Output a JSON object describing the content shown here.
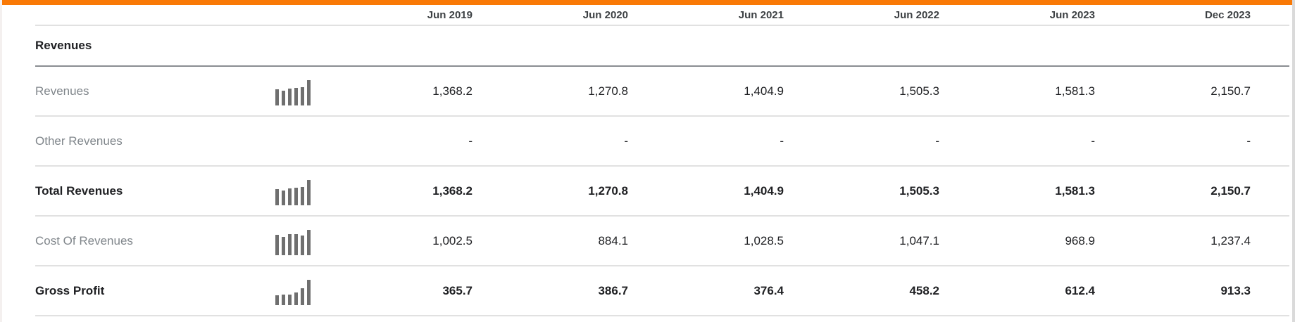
{
  "colors": {
    "top_accent": "#f97906",
    "sparkline": "#6f6f6f",
    "separator_light": "#e1e1e1",
    "separator_dark": "#8a8d91",
    "left_strip": "#f4f0ef",
    "right_strip": "#dadada",
    "header_text": "#3c4043",
    "muted_label": "#80868b",
    "strong_text": "#202124"
  },
  "table": {
    "columns": [
      "Jun 2019",
      "Jun 2020",
      "Jun 2021",
      "Jun 2022",
      "Jun 2023",
      "Dec 2023"
    ],
    "section_label": "Revenues",
    "rows": [
      {
        "label": "Revenues",
        "bold": false,
        "sparkline": [
          1368.2,
          1270.8,
          1404.9,
          1505.3,
          1581.3,
          2150.7
        ],
        "values": [
          "1,368.2",
          "1,270.8",
          "1,404.9",
          "1,505.3",
          "1,581.3",
          "2,150.7"
        ]
      },
      {
        "label": "Other Revenues",
        "bold": false,
        "sparkline": null,
        "values": [
          "-",
          "-",
          "-",
          "-",
          "-",
          "-"
        ]
      },
      {
        "label": "Total Revenues",
        "bold": true,
        "sparkline": [
          1368.2,
          1270.8,
          1404.9,
          1505.3,
          1581.3,
          2150.7
        ],
        "values": [
          "1,368.2",
          "1,270.8",
          "1,404.9",
          "1,505.3",
          "1,581.3",
          "2,150.7"
        ]
      },
      {
        "label": "Cost Of Revenues",
        "bold": false,
        "sparkline": [
          1002.5,
          884.1,
          1028.5,
          1047.1,
          968.9,
          1237.4
        ],
        "values": [
          "1,002.5",
          "884.1",
          "1,028.5",
          "1,047.1",
          "968.9",
          "1,237.4"
        ]
      },
      {
        "label": "Gross Profit",
        "bold": true,
        "sparkline": [
          365.7,
          386.7,
          376.4,
          458.2,
          612.4,
          913.3
        ],
        "values": [
          "365.7",
          "386.7",
          "376.4",
          "458.2",
          "612.4",
          "913.3"
        ]
      }
    ]
  }
}
